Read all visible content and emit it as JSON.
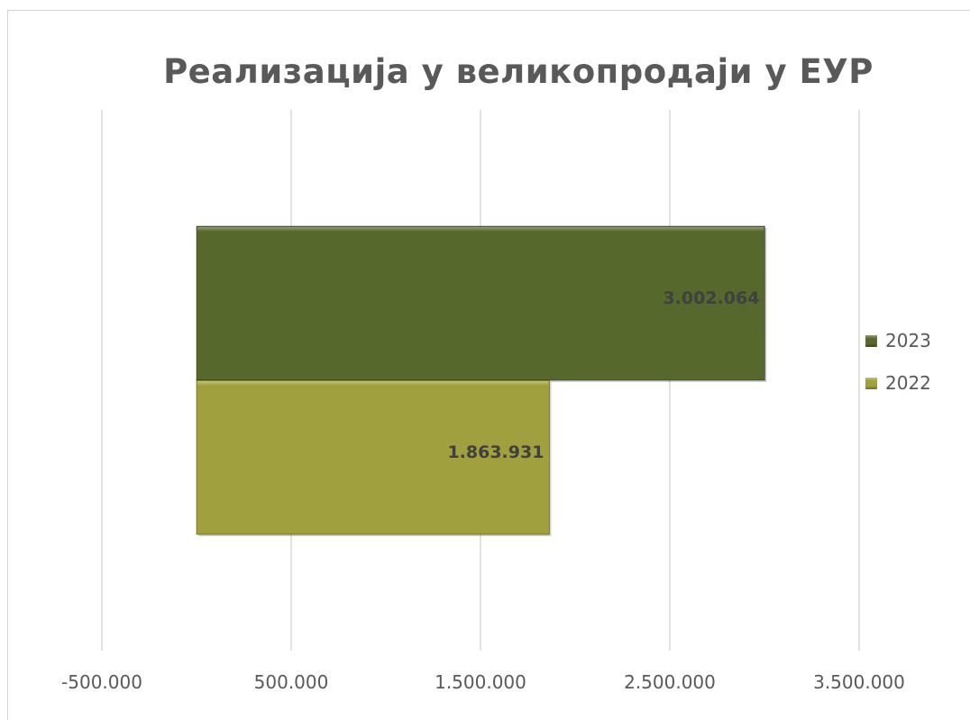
{
  "chart_data": {
    "type": "bar",
    "orientation": "horizontal",
    "title": "Реализација у великопродаји у ЕУР",
    "series": [
      {
        "name": "2023",
        "value": 3002064,
        "label": "3.002.064",
        "color": "#56682c"
      },
      {
        "name": "2022",
        "value": 1863931,
        "label": "1.863.931",
        "color": "#a0a03e"
      }
    ],
    "xlim": [
      -1000000,
      4000000
    ],
    "x_ticks": [
      -500000,
      500000,
      1500000,
      2500000,
      3500000
    ],
    "x_tick_labels": [
      "-500.000",
      "500.000",
      "1.500.000",
      "2.500.000",
      "3.500.000"
    ],
    "grid": true,
    "legend_position": "right"
  }
}
